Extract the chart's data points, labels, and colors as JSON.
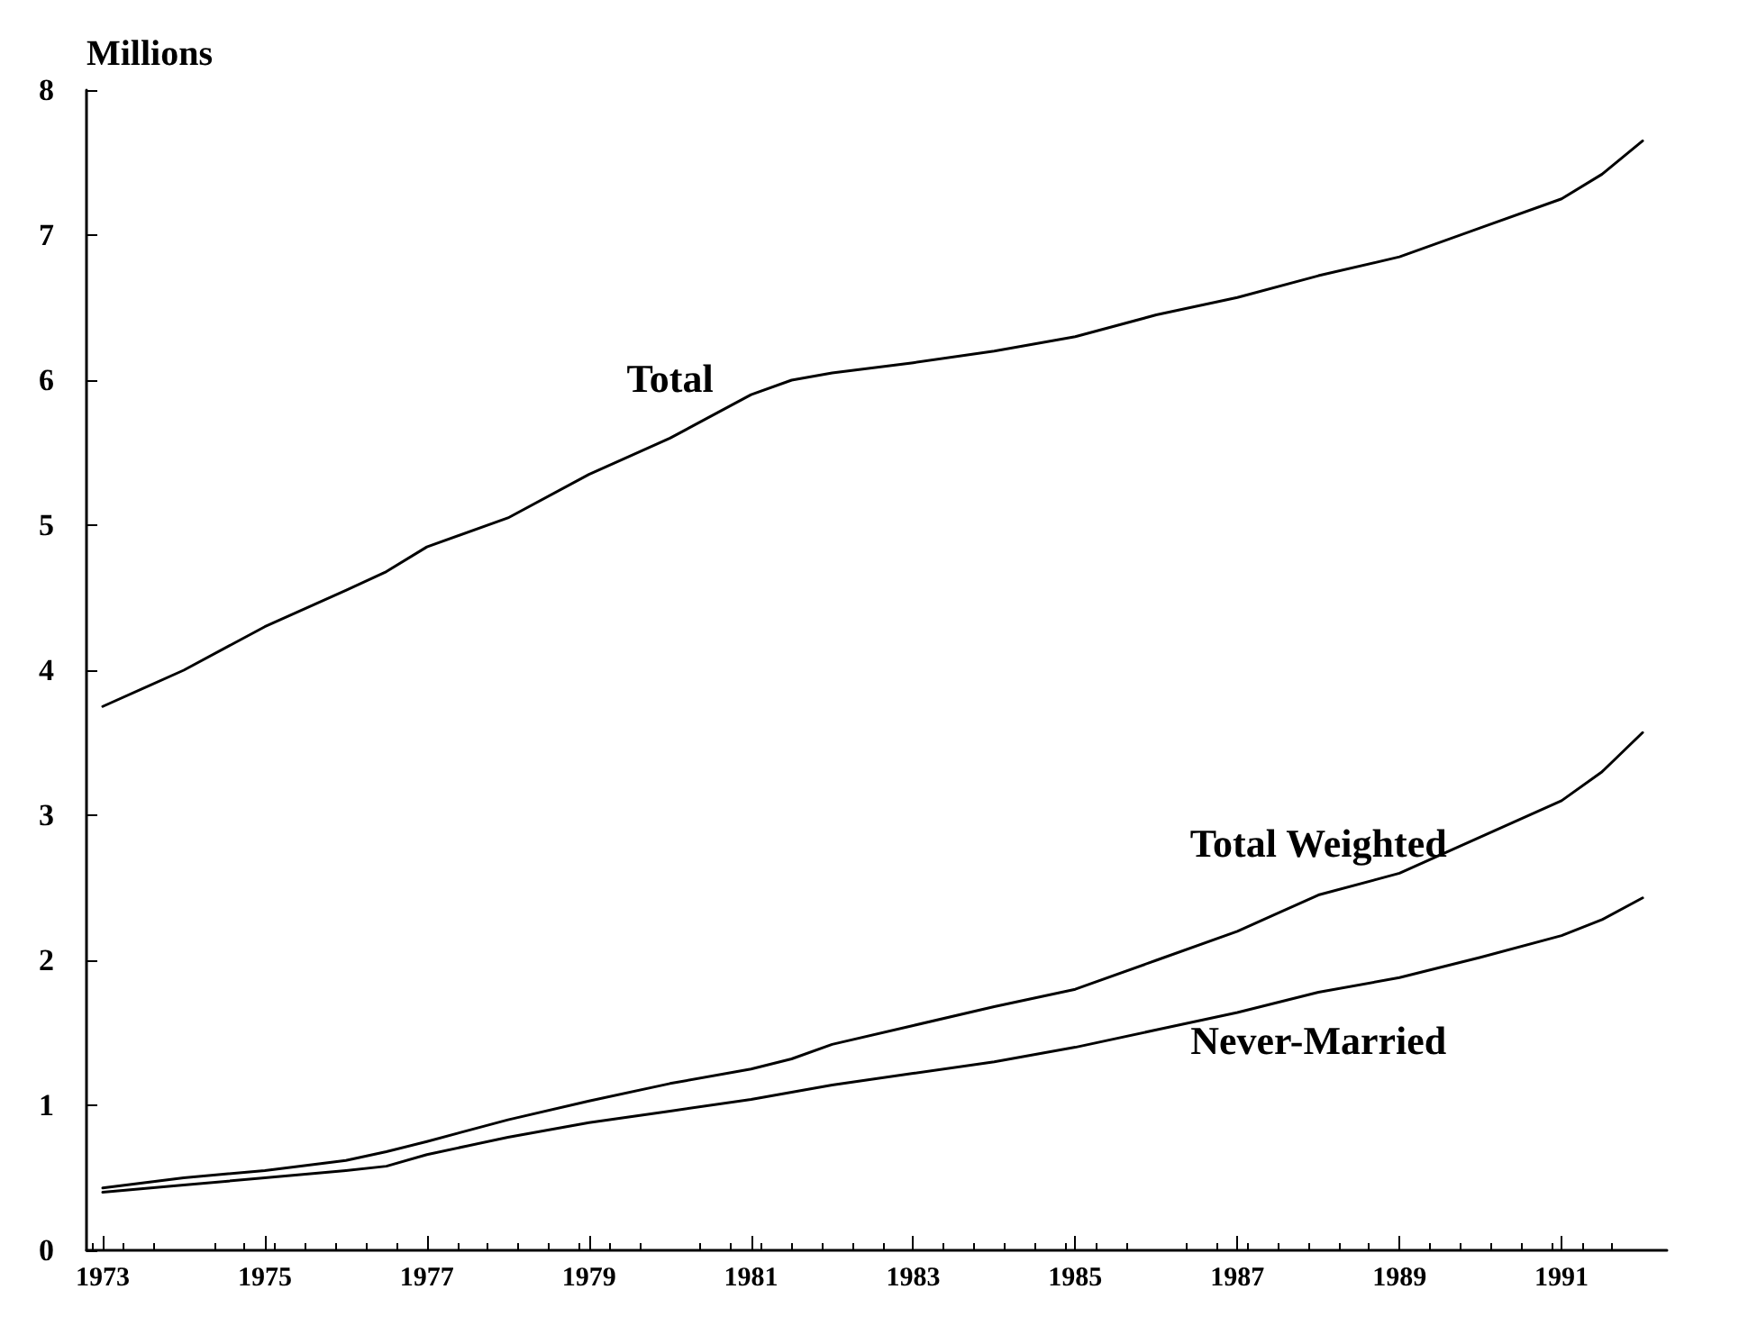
{
  "chart_data": {
    "type": "line",
    "ylabel": "Millions",
    "x": [
      1973,
      1974,
      1975,
      1976,
      1976.5,
      1977,
      1978,
      1979,
      1980,
      1981,
      1981.5,
      1982,
      1983,
      1984,
      1985,
      1986,
      1987,
      1988,
      1989,
      1990,
      1991,
      1991.5,
      1992
    ],
    "series": [
      {
        "name": "Total",
        "color": "#000000",
        "values": [
          3.75,
          4.0,
          4.3,
          4.55,
          4.68,
          4.85,
          5.05,
          5.35,
          5.6,
          5.9,
          6.0,
          6.05,
          6.12,
          6.2,
          6.3,
          6.45,
          6.57,
          6.72,
          6.85,
          7.05,
          7.25,
          7.42,
          7.65
        ]
      },
      {
        "name": "Total Weighted",
        "color": "#000000",
        "values": [
          0.43,
          0.5,
          0.55,
          0.62,
          0.68,
          0.75,
          0.9,
          1.03,
          1.15,
          1.25,
          1.32,
          1.42,
          1.55,
          1.68,
          1.8,
          2.0,
          2.2,
          2.45,
          2.6,
          2.85,
          3.1,
          3.3,
          3.57
        ]
      },
      {
        "name": "Never-Married",
        "color": "#000000",
        "values": [
          0.4,
          0.45,
          0.5,
          0.55,
          0.58,
          0.66,
          0.78,
          0.88,
          0.96,
          1.04,
          1.09,
          1.14,
          1.22,
          1.3,
          1.4,
          1.52,
          1.64,
          1.78,
          1.88,
          2.02,
          2.17,
          2.28,
          2.43
        ]
      }
    ],
    "xlim": [
      1972.8,
      1992.3
    ],
    "xticks": [
      1973,
      1975,
      1977,
      1979,
      1981,
      1983,
      1985,
      1987,
      1989,
      1991
    ],
    "ylim": [
      0,
      8
    ],
    "yticks": [
      0,
      1,
      2,
      3,
      4,
      5,
      6,
      7,
      8
    ],
    "grid": false,
    "legend": false,
    "marker": "none",
    "line_style": "solid"
  }
}
